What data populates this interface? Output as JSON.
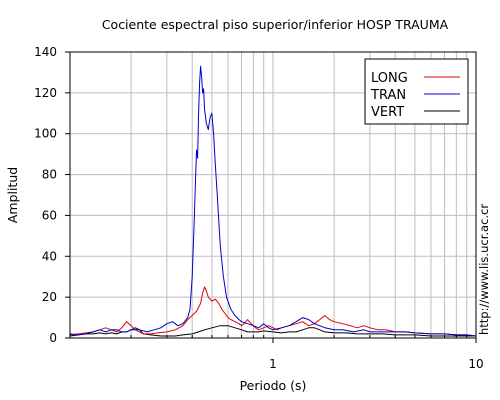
{
  "chart_data": {
    "type": "line",
    "title": "Cociente espectral piso superior/inferior  HOSP TRAUMA",
    "xlabel": "Periodo (s)",
    "ylabel": "Amplitud",
    "xscale": "log",
    "xlim": [
      0.1,
      10
    ],
    "ylim": [
      0,
      140
    ],
    "grid": true,
    "legend_position": "top-right",
    "y_ticks": [
      "0",
      "20",
      "40",
      "60",
      "80",
      "100",
      "120",
      "140"
    ],
    "x_tick_labels": [
      {
        "value": 1,
        "label": "1"
      },
      {
        "value": 10,
        "label": "10"
      }
    ],
    "x_minor_ticks": [
      0.2,
      0.3,
      0.4,
      0.5,
      0.6,
      0.7,
      0.8,
      0.9,
      2,
      3,
      4,
      5,
      6,
      7,
      8,
      9
    ],
    "series": [
      {
        "name": "LONG",
        "color": "#e00000",
        "points": [
          [
            0.1,
            1.5
          ],
          [
            0.11,
            2
          ],
          [
            0.12,
            2.5
          ],
          [
            0.13,
            3
          ],
          [
            0.14,
            4
          ],
          [
            0.15,
            5
          ],
          [
            0.16,
            4
          ],
          [
            0.17,
            3
          ],
          [
            0.18,
            5
          ],
          [
            0.19,
            8
          ],
          [
            0.2,
            6
          ],
          [
            0.21,
            4
          ],
          [
            0.22,
            3
          ],
          [
            0.23,
            2
          ],
          [
            0.25,
            2
          ],
          [
            0.27,
            2.5
          ],
          [
            0.3,
            3
          ],
          [
            0.33,
            4
          ],
          [
            0.36,
            6
          ],
          [
            0.38,
            9
          ],
          [
            0.4,
            11
          ],
          [
            0.42,
            13
          ],
          [
            0.44,
            17
          ],
          [
            0.45,
            22
          ],
          [
            0.46,
            25
          ],
          [
            0.47,
            23
          ],
          [
            0.48,
            20
          ],
          [
            0.5,
            18
          ],
          [
            0.52,
            19
          ],
          [
            0.54,
            17
          ],
          [
            0.56,
            14
          ],
          [
            0.58,
            12
          ],
          [
            0.6,
            10
          ],
          [
            0.62,
            9
          ],
          [
            0.65,
            8
          ],
          [
            0.68,
            7
          ],
          [
            0.7,
            6
          ],
          [
            0.72,
            7
          ],
          [
            0.75,
            9
          ],
          [
            0.78,
            7
          ],
          [
            0.82,
            5
          ],
          [
            0.85,
            4
          ],
          [
            0.9,
            5
          ],
          [
            0.95,
            6
          ],
          [
            1,
            5
          ],
          [
            1.05,
            4
          ],
          [
            1.1,
            5
          ],
          [
            1.2,
            6
          ],
          [
            1.3,
            7
          ],
          [
            1.4,
            8
          ],
          [
            1.5,
            6
          ],
          [
            1.6,
            7
          ],
          [
            1.7,
            9
          ],
          [
            1.8,
            11
          ],
          [
            1.9,
            9
          ],
          [
            2,
            8
          ],
          [
            2.2,
            7
          ],
          [
            2.4,
            6
          ],
          [
            2.6,
            5
          ],
          [
            2.8,
            6
          ],
          [
            3,
            5
          ],
          [
            3.3,
            4
          ],
          [
            3.6,
            4
          ],
          [
            4,
            3
          ],
          [
            4.5,
            3
          ],
          [
            5,
            2.5
          ],
          [
            6,
            2
          ],
          [
            7,
            2
          ],
          [
            8,
            1.5
          ],
          [
            9,
            1.5
          ],
          [
            10,
            1
          ]
        ]
      },
      {
        "name": "TRAN",
        "color": "#0000cc",
        "points": [
          [
            0.1,
            2
          ],
          [
            0.11,
            1.5
          ],
          [
            0.12,
            2
          ],
          [
            0.13,
            3
          ],
          [
            0.14,
            4
          ],
          [
            0.15,
            3
          ],
          [
            0.16,
            4
          ],
          [
            0.17,
            4
          ],
          [
            0.18,
            3
          ],
          [
            0.19,
            3
          ],
          [
            0.2,
            4
          ],
          [
            0.22,
            4
          ],
          [
            0.24,
            3
          ],
          [
            0.26,
            4
          ],
          [
            0.28,
            5
          ],
          [
            0.3,
            7
          ],
          [
            0.32,
            8
          ],
          [
            0.34,
            6
          ],
          [
            0.36,
            7
          ],
          [
            0.38,
            10
          ],
          [
            0.39,
            14
          ],
          [
            0.4,
            30
          ],
          [
            0.41,
            60
          ],
          [
            0.42,
            92
          ],
          [
            0.425,
            88
          ],
          [
            0.43,
            110
          ],
          [
            0.435,
            125
          ],
          [
            0.44,
            133
          ],
          [
            0.445,
            128
          ],
          [
            0.45,
            120
          ],
          [
            0.455,
            122
          ],
          [
            0.46,
            112
          ],
          [
            0.47,
            105
          ],
          [
            0.48,
            102
          ],
          [
            0.49,
            108
          ],
          [
            0.5,
            110
          ],
          [
            0.51,
            100
          ],
          [
            0.52,
            85
          ],
          [
            0.53,
            72
          ],
          [
            0.54,
            58
          ],
          [
            0.55,
            45
          ],
          [
            0.57,
            30
          ],
          [
            0.59,
            20
          ],
          [
            0.62,
            14
          ],
          [
            0.65,
            11
          ],
          [
            0.68,
            9
          ],
          [
            0.7,
            8
          ],
          [
            0.75,
            7
          ],
          [
            0.8,
            6
          ],
          [
            0.85,
            5
          ],
          [
            0.9,
            7
          ],
          [
            0.95,
            5
          ],
          [
            1,
            4
          ],
          [
            1.1,
            5
          ],
          [
            1.2,
            6
          ],
          [
            1.3,
            8
          ],
          [
            1.4,
            10
          ],
          [
            1.5,
            9
          ],
          [
            1.6,
            7
          ],
          [
            1.7,
            6
          ],
          [
            1.8,
            5
          ],
          [
            2,
            4
          ],
          [
            2.2,
            4
          ],
          [
            2.5,
            3
          ],
          [
            2.8,
            4
          ],
          [
            3,
            3
          ],
          [
            3.5,
            3
          ],
          [
            4,
            3
          ],
          [
            4.5,
            3
          ],
          [
            5,
            2.5
          ],
          [
            6,
            2
          ],
          [
            7,
            2
          ],
          [
            8,
            1.5
          ],
          [
            9,
            1.5
          ],
          [
            10,
            1
          ]
        ]
      },
      {
        "name": "VERT",
        "color": "#000000",
        "points": [
          [
            0.1,
            1
          ],
          [
            0.11,
            1.5
          ],
          [
            0.12,
            2
          ],
          [
            0.13,
            2
          ],
          [
            0.14,
            2.5
          ],
          [
            0.15,
            2
          ],
          [
            0.16,
            2.5
          ],
          [
            0.17,
            2
          ],
          [
            0.18,
            3
          ],
          [
            0.19,
            3
          ],
          [
            0.2,
            4
          ],
          [
            0.21,
            5
          ],
          [
            0.22,
            4
          ],
          [
            0.23,
            2
          ],
          [
            0.25,
            1.5
          ],
          [
            0.28,
            1
          ],
          [
            0.3,
            1
          ],
          [
            0.33,
            1
          ],
          [
            0.36,
            1.5
          ],
          [
            0.4,
            2
          ],
          [
            0.43,
            3
          ],
          [
            0.46,
            4
          ],
          [
            0.5,
            5
          ],
          [
            0.55,
            6
          ],
          [
            0.6,
            6
          ],
          [
            0.65,
            5
          ],
          [
            0.7,
            4
          ],
          [
            0.75,
            3
          ],
          [
            0.8,
            3
          ],
          [
            0.85,
            3
          ],
          [
            0.9,
            3.5
          ],
          [
            1,
            3
          ],
          [
            1.1,
            2.5
          ],
          [
            1.2,
            3
          ],
          [
            1.3,
            3
          ],
          [
            1.4,
            4
          ],
          [
            1.5,
            5
          ],
          [
            1.6,
            5
          ],
          [
            1.7,
            4
          ],
          [
            1.8,
            3
          ],
          [
            2,
            2.5
          ],
          [
            2.3,
            2.5
          ],
          [
            2.6,
            2
          ],
          [
            3,
            2
          ],
          [
            3.5,
            2
          ],
          [
            4,
            1.5
          ],
          [
            5,
            1.5
          ],
          [
            6,
            1
          ],
          [
            7,
            1
          ],
          [
            8,
            1
          ],
          [
            10,
            1
          ]
        ]
      }
    ]
  },
  "side_text": "http://www.lis.ucr.ac.cr"
}
